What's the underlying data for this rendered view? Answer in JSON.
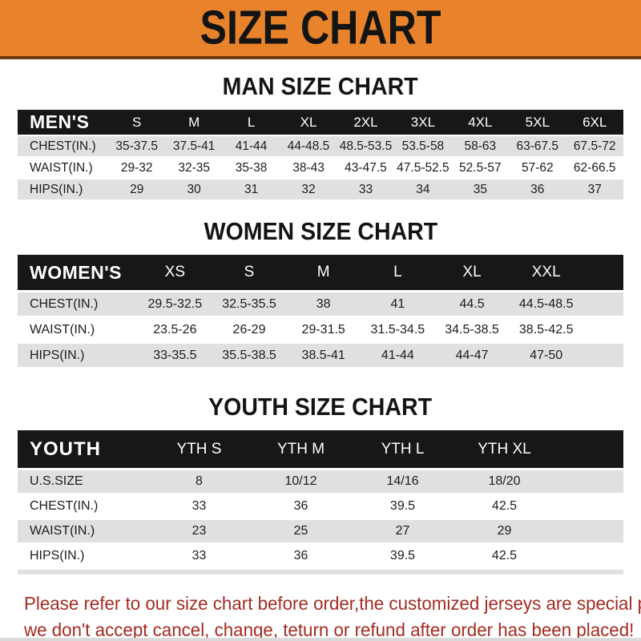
{
  "banner": {
    "title": "SIZE CHART"
  },
  "colors": {
    "banner_orange": "#E8832B",
    "banner_border": "#6E3A12",
    "header_band_black": "#171717",
    "row_gray": "#E0E0E0",
    "footer_red": "#A42B22"
  },
  "sections": [
    {
      "title": "MAN SIZE CHART",
      "header_label": "MEN'S",
      "columns": [
        "S",
        "M",
        "L",
        "XL",
        "2XL",
        "3XL",
        "4XL",
        "5XL",
        "6XL"
      ],
      "rows": [
        {
          "label": "CHEST(IN.)",
          "values": [
            "35-37.5",
            "37.5-41",
            "41-44",
            "44-48.5",
            "48.5-53.5",
            "53.5-58",
            "58-63",
            "63-67.5",
            "67.5-72"
          ]
        },
        {
          "label": "WAIST(IN.)",
          "values": [
            "29-32",
            "32-35",
            "35-38",
            "38-43",
            "43-47.5",
            "47.5-52.5",
            "52.5-57",
            "57-62",
            "62-66.5"
          ]
        },
        {
          "label": "HIPS(IN.)",
          "values": [
            "29",
            "30",
            "31",
            "32",
            "33",
            "34",
            "35",
            "36",
            "37"
          ]
        }
      ]
    },
    {
      "title": "WOMEN SIZE CHART",
      "header_label": "WOMEN'S",
      "columns": [
        "XS",
        "S",
        "M",
        "L",
        "XL",
        "XXL"
      ],
      "rows": [
        {
          "label": "CHEST(IN.)",
          "values": [
            "29.5-32.5",
            "32.5-35.5",
            "38",
            "41",
            "44.5",
            "44.5-48.5"
          ]
        },
        {
          "label": "WAIST(IN.)",
          "values": [
            "23.5-26",
            "26-29",
            "29-31.5",
            "31.5-34.5",
            "34.5-38.5",
            "38.5-42.5"
          ]
        },
        {
          "label": "HIPS(IN.)",
          "values": [
            "33-35.5",
            "35.5-38.5",
            "38.5-41",
            "41-44",
            "44-47",
            "47-50"
          ]
        }
      ]
    },
    {
      "title": "YOUTH SIZE CHART",
      "header_label": "YOUTH",
      "columns": [
        "YTH S",
        "YTH M",
        "YTH L",
        "YTH XL"
      ],
      "rows": [
        {
          "label": "U.S.SIZE",
          "values": [
            "8",
            "10/12",
            "14/16",
            "18/20"
          ]
        },
        {
          "label": "CHEST(IN.)",
          "values": [
            "33",
            "36",
            "39.5",
            "42.5"
          ]
        },
        {
          "label": "WAIST(IN.)",
          "values": [
            "23",
            "25",
            "27",
            "29"
          ]
        },
        {
          "label": "HIPS(IN.)",
          "values": [
            "33",
            "36",
            "39.5",
            "42.5"
          ]
        }
      ]
    }
  ],
  "footer": {
    "line1": "Please refer to our size chart before order,the customized jerseys are special products,",
    "line2": "we don't accept cancel, change, teturn or refund after order has been placed!"
  }
}
